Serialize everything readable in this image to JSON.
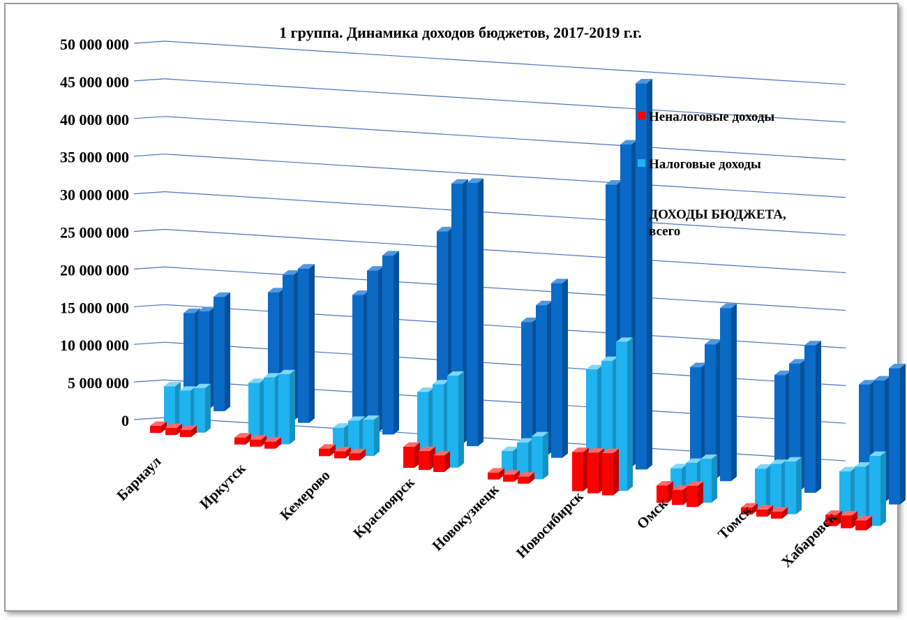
{
  "chart_data": {
    "type": "bar",
    "title": "1 группа. Динамика доходов бюджетов, 2017-2019 г.г.",
    "categories": [
      "Барнаул",
      "Иркутск",
      "Кемерово",
      "Красноярск",
      "Новокузнецк",
      "Новосибирск",
      "Омск",
      "Томск",
      "Хабаровск"
    ],
    "years": [
      "2017",
      "2018",
      "2019"
    ],
    "ylim": [
      0,
      50000000
    ],
    "yticks": [
      "0",
      "5 000 000",
      "10 000 000",
      "15 000 000",
      "20 000 000",
      "25 000 000",
      "30 000 000",
      "35 000 000",
      "40 000 000",
      "45 000 000",
      "50 000 000"
    ],
    "legend_position": "right",
    "series": [
      {
        "name": "Неналоговые доходы",
        "color": "#ff0000",
        "values": [
          [
            800000,
            700000,
            650000
          ],
          [
            700000,
            750000,
            650000
          ],
          [
            1000000,
            900000,
            800000
          ],
          [
            2800000,
            2500000,
            2200000
          ],
          [
            550000,
            450000,
            400000
          ],
          [
            5200000,
            5400000,
            5600000
          ],
          [
            2300000,
            2000000,
            2800000
          ],
          [
            700000,
            650000,
            600000
          ],
          [
            1500000,
            1700000,
            1300000
          ]
        ]
      },
      {
        "name": "Налоговые доходы",
        "color": "#1fb3ef",
        "values": [
          [
            5600000,
            5300000,
            5900000
          ],
          [
            7600000,
            8600000,
            9300000
          ],
          [
            3200000,
            4400000,
            4800000
          ],
          [
            9500000,
            10800000,
            12200000
          ],
          [
            3200000,
            4600000,
            5700000
          ],
          [
            15600000,
            17000000,
            19800000
          ],
          [
            4000000,
            5000000,
            5800000
          ],
          [
            5500000,
            6400000,
            7000000
          ],
          [
            6700000,
            7600000,
            9300000
          ]
        ]
      },
      {
        "name": "ДОХОДЫ БЮДЖЕТА, всего",
        "color": "#0a6ac6",
        "values": [
          [
            12500000,
            13000000,
            15200000
          ],
          [
            16800000,
            19400000,
            20500000
          ],
          [
            18000000,
            21500000,
            23800000
          ],
          [
            28000000,
            34600000,
            35000000
          ],
          [
            17500000,
            20000000,
            23200000
          ],
          [
            37300000,
            42900000,
            51300000
          ],
          [
            14600000,
            17900000,
            23000000
          ],
          [
            15100000,
            16900000,
            19600000
          ],
          [
            15400000,
            16200000,
            18100000
          ]
        ]
      }
    ]
  }
}
